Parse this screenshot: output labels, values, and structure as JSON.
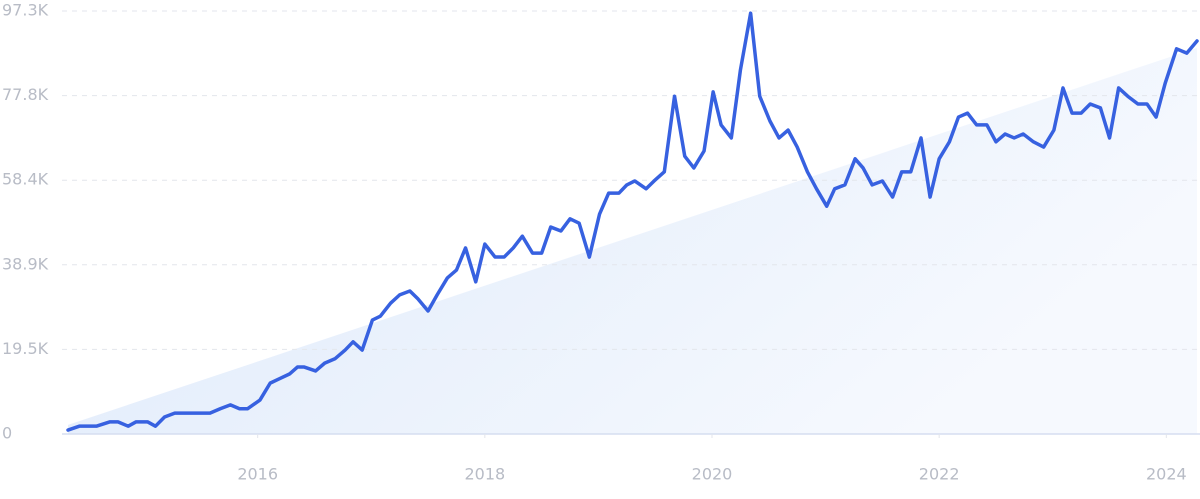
{
  "chart_data": {
    "type": "line",
    "x": [
      2014.33,
      2014.43,
      2014.58,
      2014.7,
      2014.77,
      2014.86,
      2014.93,
      2015.03,
      2015.1,
      2015.18,
      2015.27,
      2015.4,
      2015.58,
      2015.67,
      2015.76,
      2015.84,
      2015.91,
      2016.02,
      2016.11,
      2016.19,
      2016.28,
      2016.35,
      2016.41,
      2016.51,
      2016.59,
      2016.68,
      2016.77,
      2016.84,
      2016.92,
      2017.01,
      2017.08,
      2017.17,
      2017.25,
      2017.34,
      2017.41,
      2017.5,
      2017.58,
      2017.67,
      2017.75,
      2017.83,
      2017.92,
      2018.0,
      2018.09,
      2018.17,
      2018.25,
      2018.33,
      2018.42,
      2018.5,
      2018.58,
      2018.67,
      2018.75,
      2018.83,
      2018.92,
      2019.01,
      2019.09,
      2019.18,
      2019.25,
      2019.32,
      2019.42,
      2019.49,
      2019.58,
      2019.67,
      2019.76,
      2019.84,
      2019.93,
      2020.01,
      2020.08,
      2020.17,
      2020.25,
      2020.34,
      2020.42,
      2020.51,
      2020.59,
      2020.67,
      2020.75,
      2020.84,
      2020.92,
      2021.01,
      2021.08,
      2021.17,
      2021.26,
      2021.33,
      2021.41,
      2021.5,
      2021.59,
      2021.67,
      2021.75,
      2021.84,
      2021.92,
      2022.0,
      2022.09,
      2022.17,
      2022.25,
      2022.33,
      2022.42,
      2022.5,
      2022.58,
      2022.66,
      2022.74,
      2022.83,
      2022.92,
      2023.01,
      2023.09,
      2023.17,
      2023.25,
      2023.33,
      2023.42,
      2023.5,
      2023.58,
      2023.66,
      2023.75,
      2023.83,
      2023.91,
      2023.99,
      2024.09,
      2024.18,
      2024.27
    ],
    "series": [
      {
        "color": "#3761e0",
        "values": [
          900,
          1800,
          1800,
          2800,
          2800,
          1800,
          2800,
          2800,
          1800,
          3900,
          4800,
          4800,
          4800,
          5800,
          6700,
          5800,
          5800,
          7800,
          11700,
          12700,
          13800,
          15400,
          15400,
          14500,
          16300,
          17300,
          19300,
          21200,
          19300,
          26200,
          27100,
          30100,
          32000,
          32900,
          31100,
          28300,
          32000,
          35900,
          37700,
          42800,
          35000,
          43700,
          40700,
          40700,
          42800,
          45500,
          41600,
          41600,
          47600,
          46700,
          49500,
          48500,
          40700,
          50600,
          55400,
          55400,
          57300,
          58200,
          56400,
          58200,
          60300,
          77700,
          63900,
          61200,
          65100,
          78700,
          71100,
          68100,
          83700,
          96800,
          77700,
          72000,
          68100,
          69900,
          66000,
          60300,
          56400,
          52400,
          56400,
          57300,
          63300,
          61200,
          57300,
          58200,
          54500,
          60300,
          60300,
          68100,
          54500,
          63300,
          67200,
          72900,
          73800,
          71100,
          71100,
          67200,
          69000,
          68100,
          69000,
          67200,
          66000,
          69900,
          79600,
          73800,
          73800,
          75900,
          75000,
          68100,
          79600,
          77700,
          75900,
          75900,
          72900,
          80700,
          88600,
          87600,
          90400
        ]
      }
    ],
    "trend": {
      "x": [
        2014.33,
        2024.27
      ],
      "values": [
        2100,
        88800
      ]
    },
    "xlim": [
      2014.33,
      2024.27
    ],
    "xticks": [
      2016,
      2018,
      2020,
      2022,
      2024
    ],
    "ylim": [
      0,
      97300
    ],
    "yticks": [
      0,
      {
        "value": 19460,
        "label": "19.5K"
      },
      {
        "value": 38920,
        "label": "38.9K"
      },
      {
        "value": 58380,
        "label": "58.4K"
      },
      {
        "value": 77840,
        "label": "77.8K"
      },
      {
        "value": 97300,
        "label": "97.3K"
      }
    ],
    "grid": true
  }
}
